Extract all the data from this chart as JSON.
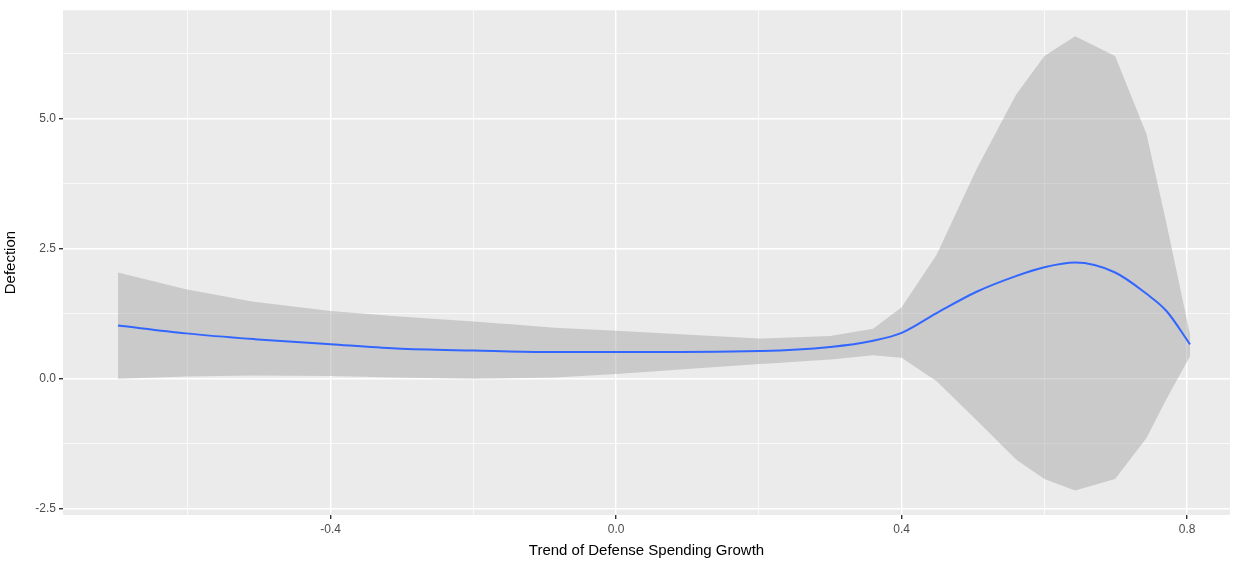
{
  "chart_data": {
    "type": "line",
    "xlabel": "Trend of Defense Spending Growth",
    "ylabel": "Defection",
    "xlim": [
      -0.775,
      0.86
    ],
    "ylim": [
      -2.62,
      7.08
    ],
    "xticks": [
      {
        "value": -0.6,
        "label": null
      },
      -0.4,
      {
        "value": -0.2,
        "label": null
      },
      {
        "value": 0,
        "label": "0.0"
      },
      {
        "value": 0.2,
        "label": null
      },
      0.4,
      {
        "value": 0.6,
        "label": null
      },
      0.8
    ],
    "yticks": [
      {
        "value": -2.5,
        "label": "-2.5"
      },
      {
        "value": -1.25,
        "label": null
      },
      {
        "value": 0,
        "label": "0.0"
      },
      {
        "value": 1.25,
        "label": null
      },
      2.5,
      {
        "value": 3.75,
        "label": null
      },
      {
        "value": 5,
        "label": "5.0"
      },
      {
        "value": 6.25,
        "label": null
      }
    ],
    "grid": true,
    "legend": false,
    "marker": "none",
    "line_style": "solid",
    "x": [
      -0.698,
      -0.603,
      -0.508,
      -0.4,
      -0.308,
      -0.2,
      -0.086,
      0,
      0.2,
      0.3,
      0.36,
      0.4,
      0.449,
      0.505,
      0.56,
      0.6,
      0.643,
      0.699,
      0.743,
      0.771,
      0.804
    ],
    "series": [
      {
        "color": "#3366ff",
        "values": [
          1.02,
          0.87,
          0.76,
          0.66,
          0.58,
          0.54,
          0.51,
          0.51,
          0.53,
          0.61,
          0.73,
          0.88,
          1.26,
          1.67,
          1.97,
          2.14,
          2.23,
          2.04,
          1.63,
          1.3,
          0.66
        ],
        "lower": [
          0,
          0.04,
          0.06,
          0.05,
          0.02,
          0,
          0.02,
          0.09,
          0.28,
          0.37,
          0.45,
          0.4,
          -0.05,
          -0.8,
          -1.55,
          -1.93,
          -2.15,
          -1.93,
          -1.14,
          -0.39,
          0.43
        ],
        "upper": [
          2.04,
          1.72,
          1.48,
          1.3,
          1.2,
          1.1,
          0.98,
          0.92,
          0.77,
          0.82,
          0.96,
          1.37,
          2.38,
          4.03,
          5.45,
          6.2,
          6.58,
          6.2,
          4.7,
          2.98,
          0.85
        ]
      }
    ]
  }
}
